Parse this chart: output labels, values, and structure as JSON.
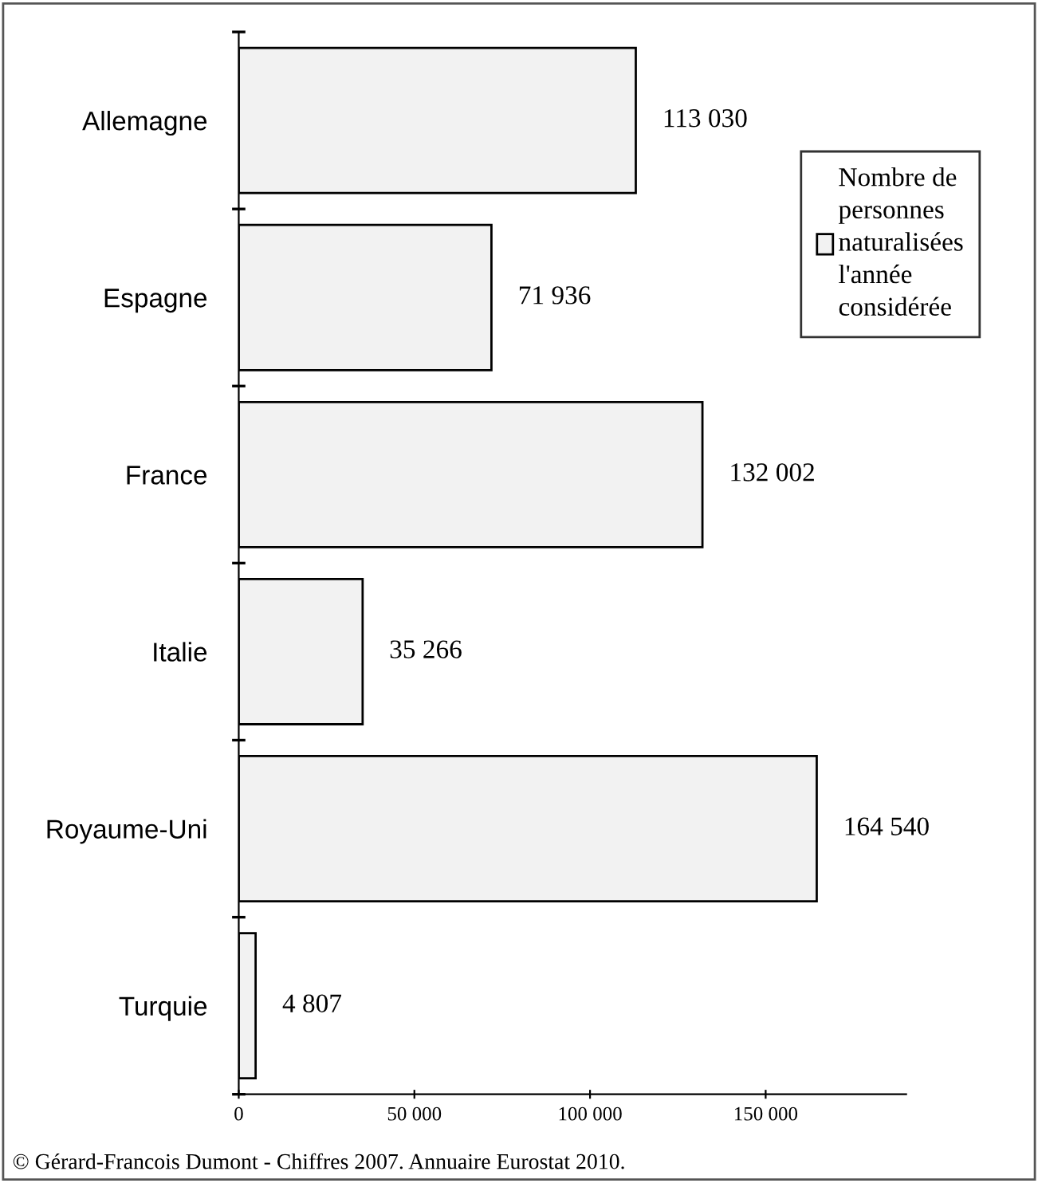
{
  "chart_data": {
    "type": "bar",
    "orientation": "horizontal",
    "categories": [
      "Allemagne",
      "Espagne",
      "France",
      "Italie",
      "Royaume-Uni",
      "Turquie"
    ],
    "series": [
      {
        "name": "Nombre de personnes naturalisées l'année considérée",
        "color": "#f2f2f2",
        "values": [
          113030,
          71936,
          132002,
          35266,
          164540,
          4807
        ],
        "value_labels": [
          "113 030",
          "71 936",
          "132 002",
          "35 266",
          "164 540",
          "4 807"
        ]
      }
    ],
    "xlim": [
      0,
      190000
    ],
    "xticks": [
      0,
      {
        "value": 50000,
        "label": "50 000"
      },
      {
        "value": 100000,
        "label": "100 000"
      },
      {
        "value": 150000,
        "label": "150 000"
      }
    ],
    "grid": false,
    "legend": "top right",
    "annotations": [
      "© Gérard-Francois Dumont - Chiffres 2007. Annuaire Eurostat 2010."
    ]
  }
}
